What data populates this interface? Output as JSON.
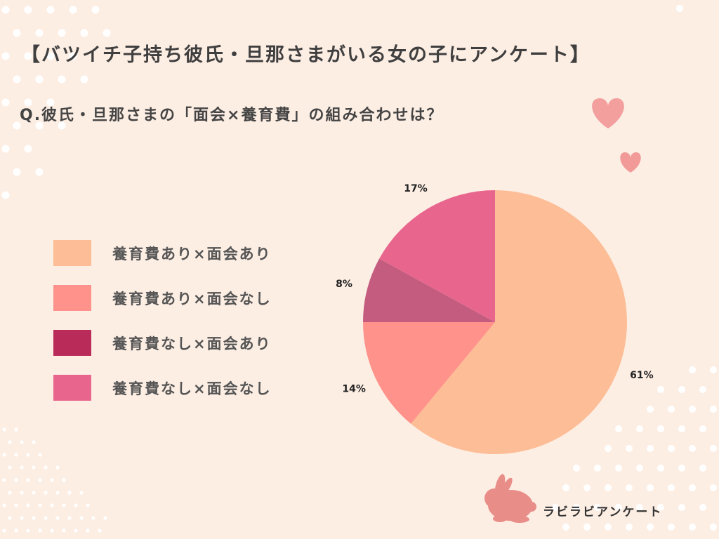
{
  "title": "【バツイチ子持ち彼氏・旦那さまがいる女の子にアンケート】",
  "question": "Q.彼氏・旦那さまの「面会×養育費」の組み合わせは？",
  "brand": "ラビラビアンケート",
  "chart_data": {
    "type": "pie",
    "categories": [
      "養育費あり×面会あり",
      "養育費あり×面会なし",
      "養育費なし×面会あり",
      "養育費なし×面会なし"
    ],
    "values": [
      61,
      14,
      8,
      17
    ],
    "pie_colors": [
      "#fdbd96",
      "#ff928a",
      "#c45c7f",
      "#e8668e"
    ],
    "legend_colors": [
      "#fdbd96",
      "#ff928a",
      "#b92b58",
      "#e8668e"
    ],
    "data_labels": [
      "61%",
      "14%",
      "8%",
      "17%"
    ],
    "legend": "left"
  }
}
